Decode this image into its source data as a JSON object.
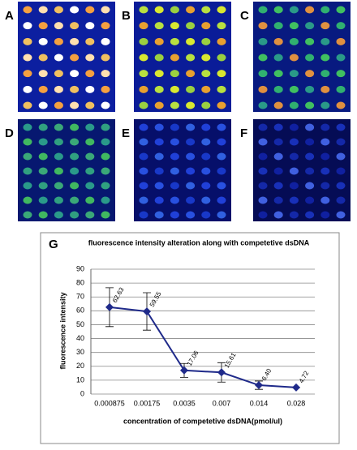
{
  "panels": [
    "A",
    "B",
    "C",
    "D",
    "E",
    "F"
  ],
  "chart_data": {
    "type": "line",
    "label": "G",
    "title": "fluorescence intensity alteration along with competetive dsDNA",
    "x_label": "concentration of competetive dsDNA(pmol/ul)",
    "y_label": "fluorescence intensity",
    "categories": [
      "0.000875",
      "0.00175",
      "0.0035",
      "0.007",
      "0.014",
      "0.028"
    ],
    "values": [
      62.63,
      59.55,
      17.06,
      15.61,
      6.4,
      4.72
    ],
    "value_labels": [
      "62.63",
      "59.55",
      "17.06",
      "15.61",
      "6.40",
      "4.72"
    ],
    "errors": [
      14,
      13.5,
      5,
      7,
      3,
      0
    ],
    "color": "#1f2a8a",
    "ylim": [
      0,
      90
    ],
    "yticks": [
      0,
      10,
      20,
      30,
      40,
      50,
      60,
      70,
      80,
      90
    ],
    "grid": true
  }
}
